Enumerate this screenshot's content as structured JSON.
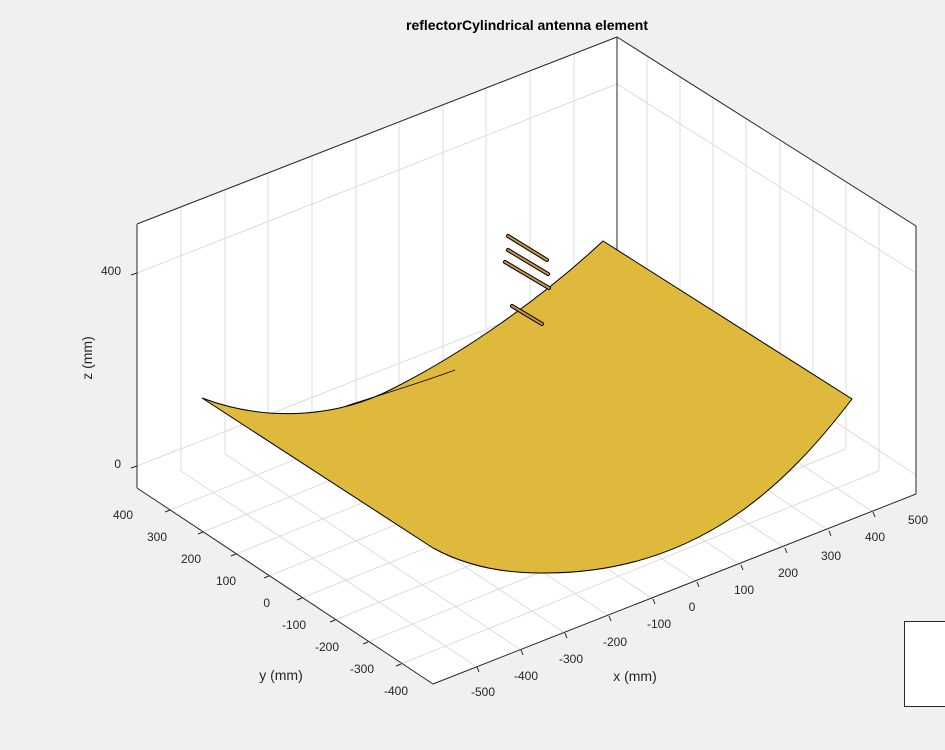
{
  "figure": {
    "title": "reflectorCylindrical antenna element",
    "xlabel": "x (mm)",
    "ylabel": "y (mm)",
    "zlabel": "z (mm)",
    "x_ticks": [
      "-500",
      "-400",
      "-300",
      "-200",
      "-100",
      "0",
      "100",
      "200",
      "300",
      "400",
      "500"
    ],
    "y_ticks": [
      "-400",
      "-300",
      "-200",
      "-100",
      "0",
      "100",
      "200",
      "300",
      "400"
    ],
    "z_ticks": [
      "0",
      "400"
    ],
    "colors": {
      "background": "#f0f0f0",
      "axes_face": "#ffffff",
      "reflector": "#dfb93b",
      "dipole": "#c7954a",
      "grid": "#dcdcdc",
      "axis": "#262626"
    }
  }
}
